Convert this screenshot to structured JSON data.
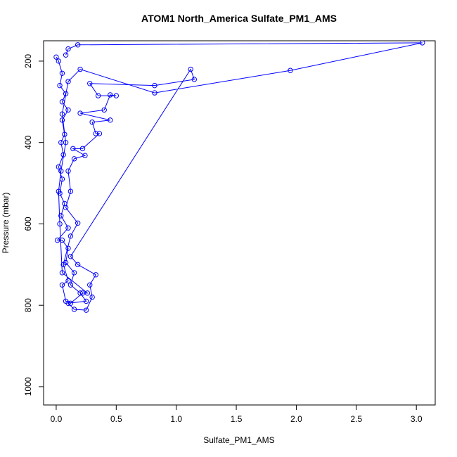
{
  "chart_data": {
    "type": "line",
    "title": "ATOM1 North_America Sulfate_PM1_AMS",
    "x_label": "Sulfate_PM1_AMS",
    "y_label": "Pressure (mbar)",
    "xlim": [
      -0.105,
      3.157
    ],
    "ylim": [
      150,
      1045
    ],
    "y_reversed": true,
    "xticks": [
      {
        "value": 0,
        "label": "0.0"
      },
      {
        "value": 0.5,
        "label": "0.5"
      },
      {
        "value": 1,
        "label": "1.0"
      },
      {
        "value": 1.5,
        "label": "1.5"
      },
      {
        "value": 2,
        "label": "2.0"
      },
      {
        "value": 2.5,
        "label": "2.5"
      },
      {
        "value": 3,
        "label": "3.0"
      }
    ],
    "yticks": [
      200,
      400,
      600,
      800,
      1000
    ],
    "series": [
      {
        "name": "Sulfate_PM1_AMS",
        "color": "#0000ff",
        "x": [
          0.0,
          0.02,
          0.05,
          0.03,
          0.08,
          0.05,
          0.1,
          0.05,
          0.07,
          0.04,
          0.06,
          0.02,
          0.05,
          0.03,
          0.07,
          0.04,
          0.1,
          0.01,
          0.05,
          0.1,
          0.08,
          0.15,
          0.12,
          0.2,
          0.25,
          0.1,
          0.15,
          0.25,
          0.3,
          0.28,
          0.33,
          0.18,
          0.12,
          1.12,
          1.15,
          0.82,
          0.28,
          0.35,
          0.5,
          0.45,
          0.4,
          0.2,
          0.45,
          0.3,
          0.33,
          0.36,
          0.22,
          0.14,
          0.24,
          0.15,
          0.1,
          0.12,
          0.08,
          0.18,
          0.12,
          0.06,
          0.1,
          0.05,
          0.08,
          0.12,
          0.22,
          0.26,
          0.05,
          0.03,
          0.02,
          0.04,
          0.08,
          0.05,
          0.1,
          0.2,
          0.82,
          1.95,
          3.05,
          0.18,
          0.1,
          0.08
        ],
        "values": [
          190,
          200,
          230,
          260,
          280,
          300,
          320,
          345,
          380,
          400,
          430,
          460,
          490,
          525,
          550,
          580,
          610,
          640,
          640,
          660,
          695,
          720,
          750,
          770,
          790,
          795,
          810,
          812,
          780,
          750,
          725,
          700,
          680,
          220,
          245,
          260,
          255,
          285,
          285,
          283,
          320,
          328,
          345,
          350,
          378,
          378,
          415,
          415,
          432,
          440,
          470,
          520,
          560,
          598,
          630,
          700,
          740,
          750,
          790,
          795,
          770,
          770,
          720,
          600,
          520,
          470,
          400,
          330,
          250,
          220,
          278,
          223,
          155,
          160,
          170,
          185
        ]
      }
    ]
  }
}
